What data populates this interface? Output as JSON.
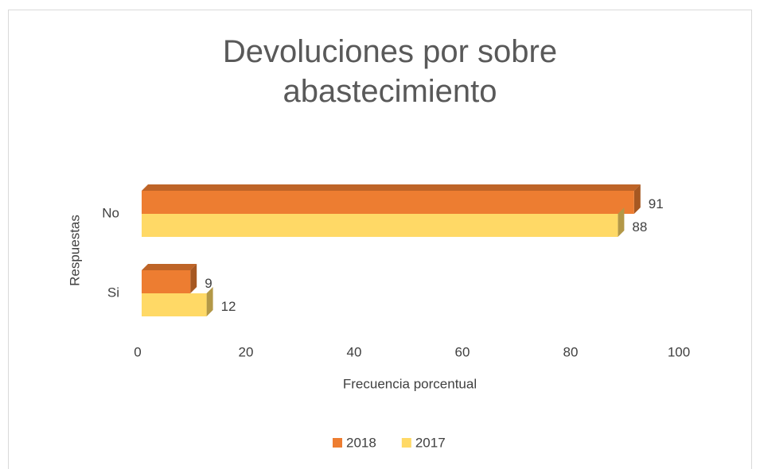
{
  "chart_data": {
    "type": "bar",
    "orientation": "horizontal",
    "three_d": true,
    "title": "Devoluciones por sobre abastecimiento",
    "x_label": "Frecuencia porcentual",
    "y_label": "Respuestas",
    "categories": [
      "No",
      "Si"
    ],
    "series": [
      {
        "name": "2018",
        "color": "#ED7D31",
        "values": [
          91,
          9
        ]
      },
      {
        "name": "2017",
        "color": "#FFD966",
        "values": [
          88,
          12
        ]
      }
    ],
    "xlim": [
      0,
      100
    ],
    "xticks": [
      0,
      20,
      40,
      60,
      80,
      100
    ],
    "grid": false,
    "legend": "bottom"
  }
}
